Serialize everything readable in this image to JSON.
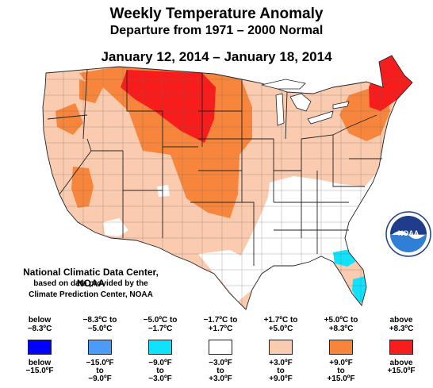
{
  "title": "Weekly Temperature Anomaly",
  "subtitle": "Departure from 1971 – 2000 Normal",
  "date_range": "January 12, 2014 – January 18, 2014",
  "credit": {
    "line1": "National Climatic Data Center, NOAA",
    "line2": "based on data provided by the",
    "line3": "Climate Prediction Center, NOAA"
  },
  "logo": {
    "text": "NOAA",
    "icon": "noaa-logo-icon"
  },
  "legend": [
    {
      "c1": "below",
      "c2": "−8.3ºC",
      "color": "#0000ff",
      "f1": "below",
      "f2": "−15.0ºF",
      "f3": ""
    },
    {
      "c1": "−8.3ºC to",
      "c2": "−5.0ºC",
      "color": "#4c9bf6",
      "f1": "−15.0ºF",
      "f2": "to",
      "f3": "−9.0ºF"
    },
    {
      "c1": "−5.0ºC to",
      "c2": "−1.7ºC",
      "color": "#10e1fc",
      "f1": "−9.0ºF",
      "f2": "to",
      "f3": "−3.0ºF"
    },
    {
      "c1": "−1.7ºC to",
      "c2": "+1.7ºC",
      "color": "#ffffff",
      "f1": "−3.0ºF",
      "f2": "to",
      "f3": "+3.0ºF"
    },
    {
      "c1": "+1.7ºC to",
      "c2": "+5.0ºC",
      "color": "#fbcbaf",
      "f1": "+3.0ºF",
      "f2": "to",
      "f3": "+9.0ºF"
    },
    {
      "c1": "+5.0ºC to",
      "c2": "+8.3ºC",
      "color": "#f7863c",
      "f1": "+9.0ºF",
      "f2": "to",
      "f3": "+15.0ºF"
    },
    {
      "c1": "above",
      "c2": "+8.3ºC",
      "color": "#f71d1d",
      "f1": "above",
      "f2": "+15.0ºF",
      "f3": ""
    }
  ]
}
